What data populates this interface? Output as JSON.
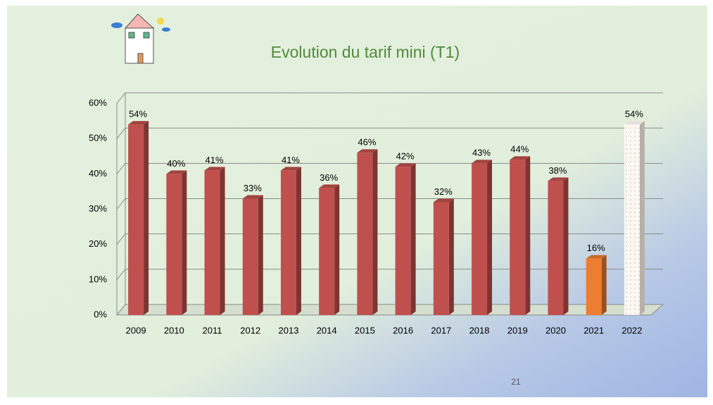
{
  "chart_data": {
    "type": "bar",
    "title": "Evolution du tarif mini (T1)",
    "categories": [
      "2009",
      "2010",
      "2011",
      "2012",
      "2013",
      "2014",
      "2015",
      "2016",
      "2017",
      "2018",
      "2019",
      "2020",
      "2021",
      "2022"
    ],
    "values": [
      54,
      40,
      41,
      33,
      41,
      36,
      46,
      42,
      32,
      43,
      44,
      38,
      16,
      54
    ],
    "value_labels": [
      "54%",
      "40%",
      "41%",
      "33%",
      "41%",
      "36%",
      "46%",
      "42%",
      "32%",
      "43%",
      "44%",
      "38%",
      "16%",
      "54%"
    ],
    "colors": [
      "#c0504d",
      "#c0504d",
      "#c0504d",
      "#c0504d",
      "#c0504d",
      "#c0504d",
      "#c0504d",
      "#c0504d",
      "#c0504d",
      "#c0504d",
      "#c0504d",
      "#c0504d",
      "#ed7d31",
      "#fbf8f4"
    ],
    "ylim": [
      0,
      60
    ],
    "yticks": [
      {
        "value": 0,
        "label": "0%"
      },
      {
        "value": 10,
        "label": "10%"
      },
      {
        "value": 20,
        "label": "20%"
      },
      {
        "value": 30,
        "label": "30%"
      },
      {
        "value": 40,
        "label": "40%"
      },
      {
        "value": 50,
        "label": "50%"
      },
      {
        "value": 60,
        "label": "60%"
      }
    ],
    "grid": true
  },
  "page_number": "21"
}
